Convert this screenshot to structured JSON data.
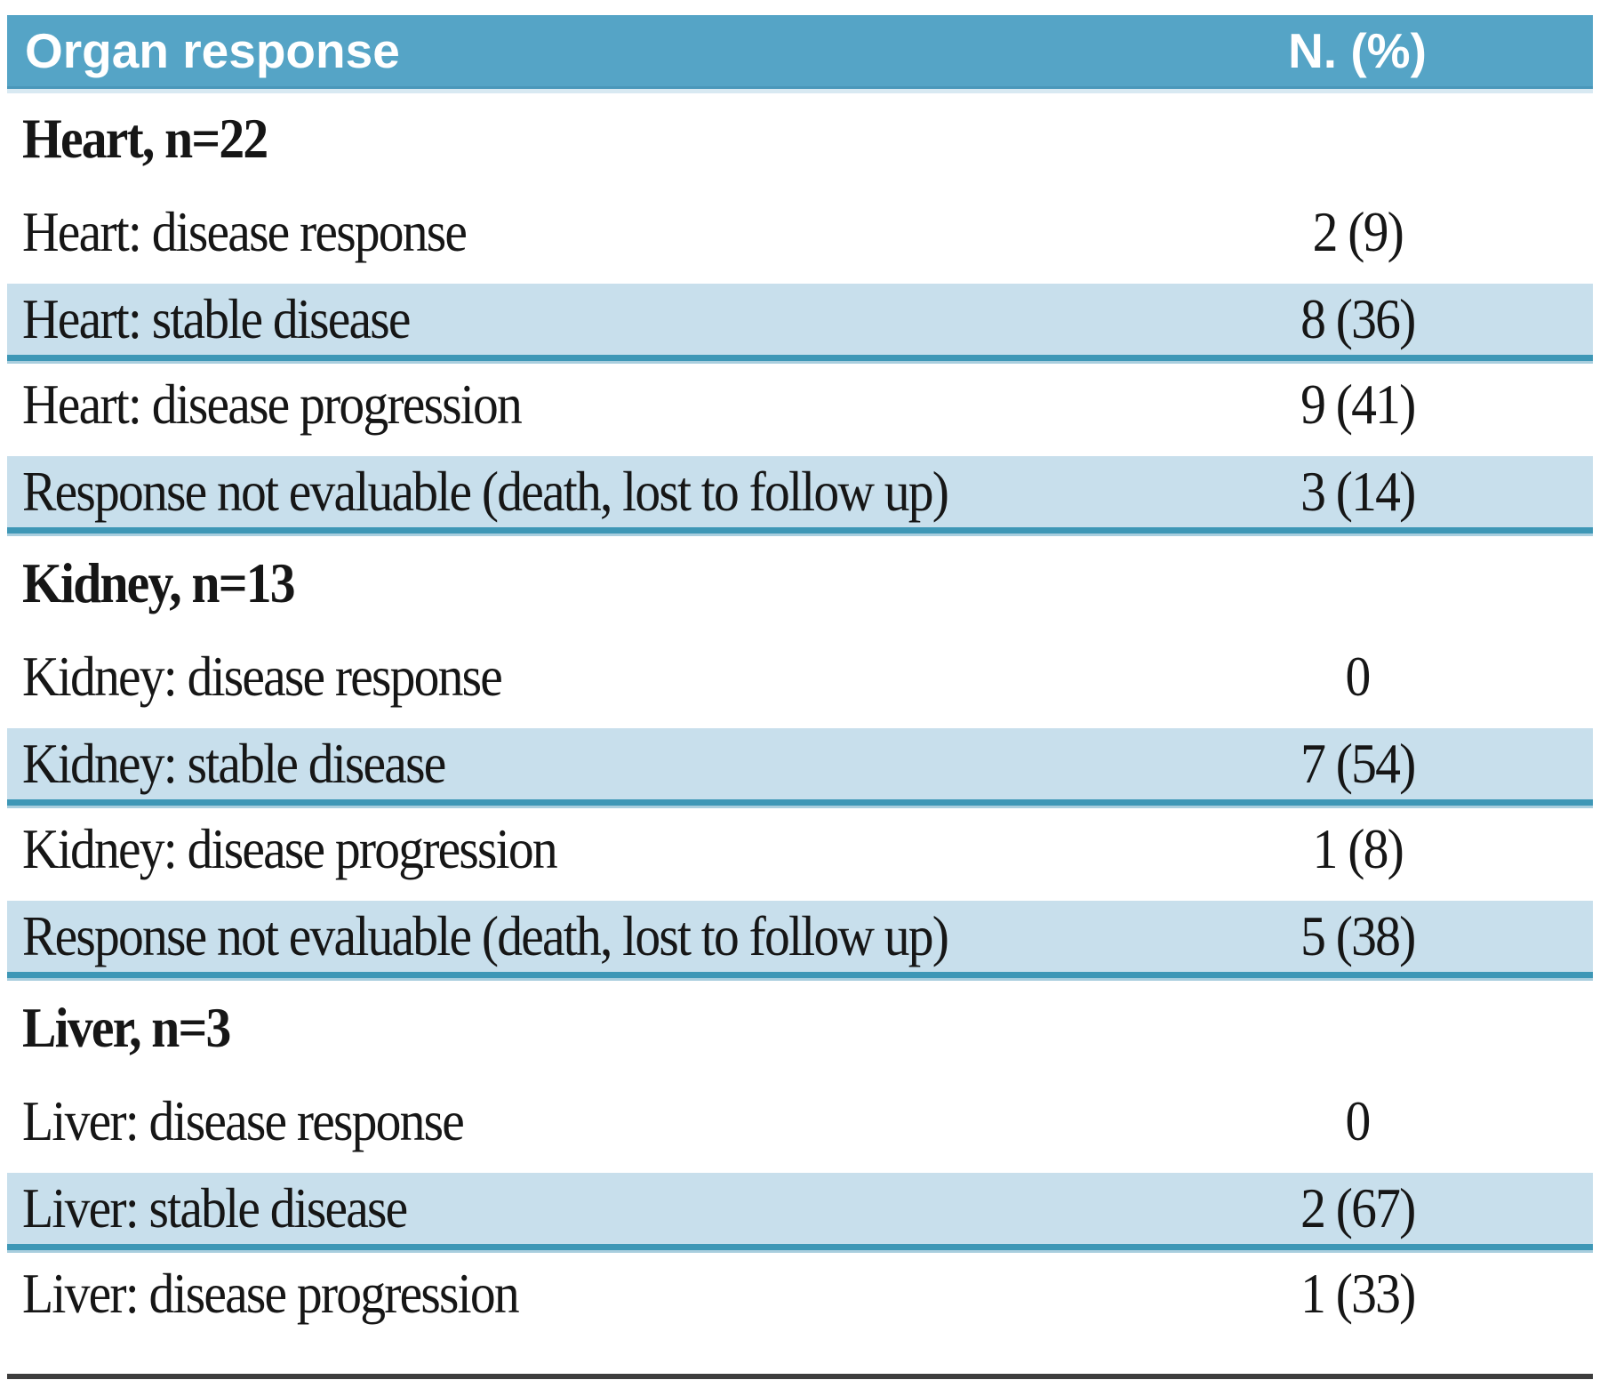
{
  "title": "Organ response",
  "colors": {
    "header_bg": "#55a4c6",
    "header_edge": "#4a97ba",
    "header_glow": "#d8e9f2",
    "header_text": "#ffffff",
    "shaded_row_bg": "#c8dfec",
    "shaded_row_border": "#3e97b6",
    "shaded_row_border_glow": "#a9cede",
    "body_text": "#161616",
    "bottom_rule": "#3d3d3d"
  },
  "table": {
    "columns": [
      "Organ response",
      "N. (%)"
    ],
    "sections": [
      {
        "title": "Heart, n=22",
        "rows": [
          {
            "label": "Heart: disease response",
            "value": "2 (9)",
            "shaded": false
          },
          {
            "label": "Heart: stable disease",
            "value": "8 (36)",
            "shaded": true
          },
          {
            "label": "Heart: disease progression",
            "value": "9 (41)",
            "shaded": false
          },
          {
            "label": "Response not evaluable (death, lost to follow up)",
            "value": "3 (14)",
            "shaded": true
          }
        ]
      },
      {
        "title": "Kidney, n=13",
        "rows": [
          {
            "label": "Kidney: disease response",
            "value": "0",
            "shaded": false
          },
          {
            "label": "Kidney: stable disease",
            "value": "7 (54)",
            "shaded": true
          },
          {
            "label": "Kidney: disease progression",
            "value": "1 (8)",
            "shaded": false
          },
          {
            "label": "Response not evaluable (death, lost to follow up)",
            "value": "5 (38)",
            "shaded": true
          }
        ]
      },
      {
        "title": "Liver, n=3",
        "rows": [
          {
            "label": "Liver: disease response",
            "value": "0",
            "shaded": false
          },
          {
            "label": "Liver: stable disease",
            "value": "2 (67)",
            "shaded": true
          },
          {
            "label": "Liver: disease progression",
            "value": "1 (33)",
            "shaded": false
          }
        ]
      }
    ]
  },
  "chart_data": {
    "type": "table",
    "title": "Organ response",
    "columns": [
      "Organ response",
      "N. (%)"
    ],
    "rows": [
      [
        "Heart, n=22",
        ""
      ],
      [
        "Heart: disease response",
        "2 (9)"
      ],
      [
        "Heart: stable disease",
        "8 (36)"
      ],
      [
        "Heart: disease progression",
        "9 (41)"
      ],
      [
        "Response not evaluable (death, lost to follow up)",
        "3 (14)"
      ],
      [
        "Kidney, n=13",
        ""
      ],
      [
        "Kidney: disease response",
        "0"
      ],
      [
        "Kidney: stable disease",
        "7 (54)"
      ],
      [
        "Kidney: disease progression",
        "1 (8)"
      ],
      [
        "Response not evaluable (death, lost to follow up)",
        "5 (38)"
      ],
      [
        "Liver, n=3",
        ""
      ],
      [
        "Liver: disease response",
        "0"
      ],
      [
        "Liver: stable disease",
        "2 (67)"
      ],
      [
        "Liver: disease progression",
        "1 (33)"
      ]
    ]
  }
}
